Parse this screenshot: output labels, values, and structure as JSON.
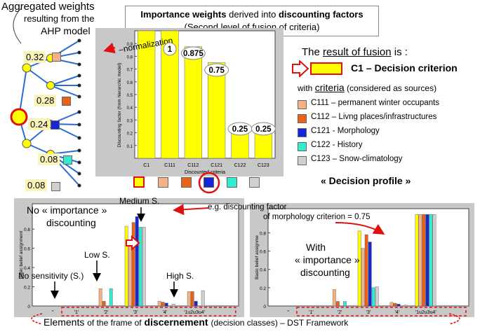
{
  "aggregation": {
    "title": "Aggregated weights",
    "subtitle": "resulting from the AHP model",
    "weights": [
      "0.32",
      "0.28",
      "0.24",
      "0.08",
      "0.08"
    ],
    "colors": [
      "#f4b183",
      "#e8621a",
      "#1426d6",
      "#33ecd0",
      "#d0d0d0"
    ]
  },
  "title_box": {
    "title_bold_1": "Importance weights",
    "title_mid": "derived into",
    "title_bold_2": "discounting factors",
    "subtitle": "(Second level of fusion of criteria)"
  },
  "top_chart": {
    "normalization_label": "normalization",
    "ylabel": "Discounting factor (from hierarchic model)",
    "xlabel": "Discounted criteria",
    "categories": [
      "C1",
      "C111",
      "C112",
      "C121",
      "C122",
      "C123"
    ],
    "value_labels": [
      "1",
      "0.875",
      "0.75",
      "0.25",
      "0.25"
    ],
    "yticks": [
      "0.1",
      "0.2",
      "0.3",
      "0.4",
      "0.5",
      "0.6",
      "0.7",
      "0.8",
      "0.9"
    ]
  },
  "fusion": {
    "prefix": "The",
    "underlined": "result of fusion",
    "suffix": "is :",
    "decision_label": "C1 – Decision criterion",
    "criteria_prefix": "with",
    "criteria_underlined": "criteria",
    "criteria_suffix": "(considered as sources)"
  },
  "legend": [
    {
      "label": "C111 – permanent winter occupants",
      "color": "#f4b183"
    },
    {
      "label": "C112 – Livng places/infrastructures",
      "color": "#e8621a"
    },
    {
      "label": "C121 - Morphology",
      "color": "#1426d6"
    },
    {
      "label": "C122 - History",
      "color": "#33ecd0"
    },
    {
      "label": "C123 – Snow-climatology",
      "color": "#d0d0d0"
    }
  ],
  "decision_profile": "« Decision profile »",
  "left_chart": {
    "annot_no_importance_1": "No « importance »",
    "annot_no_importance_2": "discounting",
    "medium": "Medium S.",
    "low": "Low S.",
    "no_sensitivity": "No sensitivity (S.)",
    "high": "High S.",
    "ylabel": "Basic belief assignment",
    "yticks": [
      "0",
      "0.2",
      "0.4",
      "0.6",
      "0.8"
    ],
    "xticks": [
      "'1'",
      "'2'",
      "'3'",
      "'4'",
      "'1u2u3u4'"
    ]
  },
  "right_chart": {
    "annot_eg_1": "e.g. discounting factor",
    "annot_eg_2": "of morphology criterion = 0.75",
    "annot_with_1": "With",
    "annot_with_2": "« importance »",
    "annot_with_3": "discounting",
    "ylabel": "Basic belief assignme",
    "yticks": [
      "0",
      "0.2",
      "0.4",
      "0.6",
      "0.8"
    ],
    "xticks": [
      "'1'",
      "'2'",
      "'3'",
      "'4'",
      "'1u2u3u4'"
    ]
  },
  "bottom": {
    "part1": "Elements",
    "part2": "of the frame of",
    "part3": "discernement",
    "part4": "(decision classes) –  DST Framework"
  },
  "chart_data": [
    {
      "type": "bar",
      "xlabel": "Discounted criteria",
      "ylabel": "Discounting factor (from hierarchic model)",
      "categories": [
        "C1",
        "C111",
        "C112",
        "C121",
        "C122",
        "C123"
      ],
      "values": [
        1,
        1,
        0.875,
        0.75,
        0.25,
        0.25
      ],
      "ylim": [
        0,
        1
      ]
    },
    {
      "type": "bar",
      "ylabel": "Basic belief assignment",
      "categories": [
        "'1'",
        "'2'",
        "'3'",
        "'4'",
        "'1u2u3u4'"
      ],
      "ylim": [
        0,
        1
      ],
      "series": [
        {
          "name": "C1",
          "values": [
            0,
            0,
            0.83,
            0,
            0
          ]
        },
        {
          "name": "C111",
          "values": [
            0,
            0.18,
            0.62,
            0.05,
            0.15
          ]
        },
        {
          "name": "C112",
          "values": [
            0,
            0.05,
            0.87,
            0.04,
            0.15
          ]
        },
        {
          "name": "C121",
          "values": [
            0,
            0,
            0.93,
            0.03,
            0.05
          ]
        },
        {
          "name": "C122",
          "values": [
            0,
            0.18,
            0.82,
            0,
            0
          ]
        },
        {
          "name": "C123",
          "values": [
            0,
            0,
            0.82,
            0.02,
            0.16
          ]
        }
      ]
    },
    {
      "type": "bar",
      "ylabel": "Basic belief assignme",
      "categories": [
        "'1'",
        "'2'",
        "'3'",
        "'4'",
        "'1u2u3u4'"
      ],
      "ylim": [
        0,
        1
      ],
      "series": [
        {
          "name": "C1",
          "values": [
            0,
            0,
            0.82,
            0,
            1
          ]
        },
        {
          "name": "C111",
          "values": [
            0,
            0.18,
            0.63,
            0.04,
            1
          ]
        },
        {
          "name": "C112",
          "values": [
            0,
            0.05,
            0.78,
            0.03,
            1
          ]
        },
        {
          "name": "C121",
          "values": [
            0,
            0,
            0.7,
            0.02,
            1
          ]
        },
        {
          "name": "C122",
          "values": [
            0,
            0.05,
            0.2,
            0,
            1
          ]
        },
        {
          "name": "C123",
          "values": [
            0,
            0,
            0.21,
            0.01,
            1
          ]
        }
      ]
    }
  ]
}
